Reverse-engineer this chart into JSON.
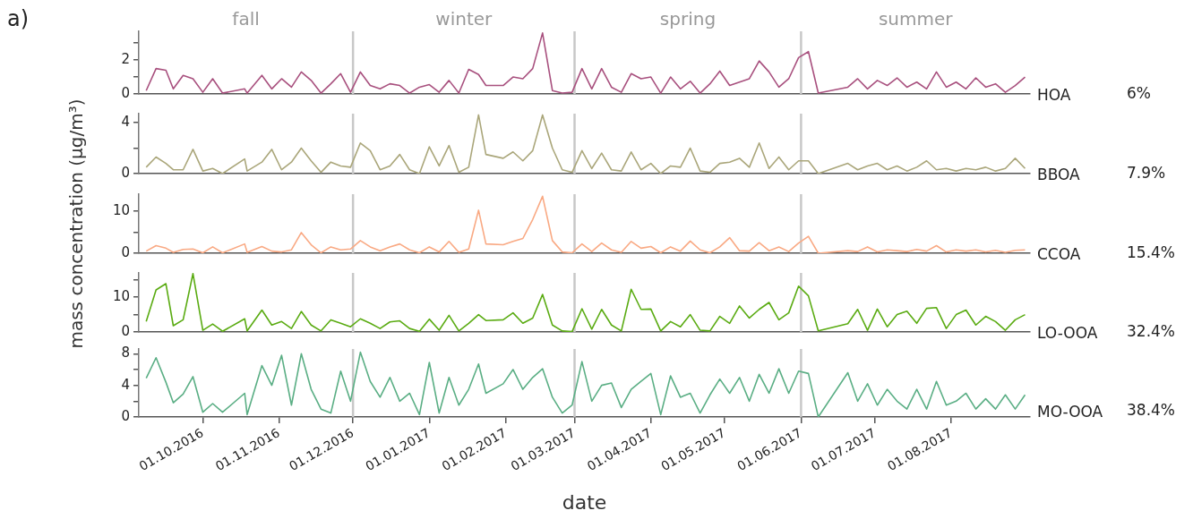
{
  "chart_data": [
    {
      "type": "line",
      "title": "a)",
      "xlim": [
        "2016-09-05",
        "2017-09-02"
      ],
      "ylim": [
        0,
        3.7
      ],
      "yticks": [
        0,
        {
          "value": 1,
          "label": null
        },
        2,
        {
          "value": 3,
          "label": null
        }
      ],
      "tick_labels": "y",
      "ref_lines": [
        {
          "axis": "x",
          "value": "2016-12-01",
          "color": "#c8c8c8"
        },
        {
          "axis": "x",
          "value": "2017-03-01",
          "color": "#c8c8c8"
        },
        {
          "axis": "x",
          "value": "2017-06-01",
          "color": "#c8c8c8"
        }
      ],
      "annotations": [
        "6%",
        "fall",
        "winter",
        "spring",
        "summer"
      ],
      "x": [
        "2016-09-08",
        "2016-09-12",
        "2016-09-16",
        "2016-09-19",
        "2016-09-23",
        "2016-09-27",
        "2016-10-01",
        "2016-10-05",
        "2016-10-09",
        "2016-10-18",
        "2016-10-19",
        "2016-10-25",
        "2016-10-29",
        "2016-11-02",
        "2016-11-06",
        "2016-11-10",
        "2016-11-14",
        "2016-11-18",
        "2016-11-22",
        "2016-11-26",
        "2016-11-30",
        "2016-12-04",
        "2016-12-08",
        "2016-12-12",
        "2016-12-16",
        "2016-12-20",
        "2016-12-24",
        "2016-12-28",
        "2017-01-01",
        "2017-01-05",
        "2017-01-09",
        "2017-01-13",
        "2017-01-17",
        "2017-01-21",
        "2017-01-24",
        "2017-01-31",
        "2017-02-04",
        "2017-02-08",
        "2017-02-12",
        "2017-02-16",
        "2017-02-20",
        "2017-02-24",
        "2017-02-28",
        "2017-03-04",
        "2017-03-08",
        "2017-03-12",
        "2017-03-16",
        "2017-03-20",
        "2017-03-24",
        "2017-03-28",
        "2017-04-01",
        "2017-04-05",
        "2017-04-09",
        "2017-04-13",
        "2017-04-17",
        "2017-04-21",
        "2017-04-25",
        "2017-04-29",
        "2017-05-03",
        "2017-05-07",
        "2017-05-11",
        "2017-05-15",
        "2017-05-19",
        "2017-05-23",
        "2017-05-27",
        "2017-05-31",
        "2017-06-04",
        "2017-06-08",
        "2017-06-20",
        "2017-06-24",
        "2017-06-28",
        "2017-07-02",
        "2017-07-06",
        "2017-07-10",
        "2017-07-14",
        "2017-07-18",
        "2017-07-22",
        "2017-07-26",
        "2017-07-30",
        "2017-08-03",
        "2017-08-07",
        "2017-08-11",
        "2017-08-15",
        "2017-08-19",
        "2017-08-23",
        "2017-08-27",
        "2017-08-31"
      ],
      "series": [
        {
          "name": "HOA",
          "color": "#a8507e",
          "values": [
            0.2,
            1.5,
            1.4,
            0.3,
            1.1,
            0.9,
            0.1,
            0.9,
            0.05,
            0.3,
            0.05,
            1.1,
            0.3,
            0.9,
            0.4,
            1.3,
            0.8,
            0.05,
            0.6,
            1.2,
            0.1,
            1.3,
            0.5,
            0.3,
            0.6,
            0.5,
            0.05,
            0.4,
            0.55,
            0.1,
            0.8,
            0.05,
            1.45,
            1.15,
            0.5,
            0.5,
            1.0,
            0.9,
            1.5,
            3.6,
            0.2,
            0.05,
            0.1,
            1.5,
            0.3,
            1.5,
            0.4,
            0.1,
            1.2,
            0.9,
            1.0,
            0.05,
            1.0,
            0.3,
            0.75,
            0.05,
            0.6,
            1.35,
            0.5,
            0.7,
            0.9,
            1.95,
            1.3,
            0.4,
            0.9,
            2.15,
            2.5,
            0.05,
            0.4,
            0.9,
            0.3,
            0.8,
            0.5,
            0.95,
            0.4,
            0.7,
            0.3,
            1.3,
            0.4,
            0.7,
            0.3,
            0.95,
            0.4,
            0.6,
            0.1,
            0.5,
            1.0
          ]
        }
      ]
    },
    {
      "type": "line",
      "xlim": [
        "2016-09-05",
        "2017-09-02"
      ],
      "ylim": [
        0,
        4.7
      ],
      "yticks": [
        0,
        {
          "value": 2,
          "label": null
        },
        4
      ],
      "tick_labels": "y",
      "ref_lines": [
        {
          "axis": "x",
          "value": "2016-12-01",
          "color": "#c8c8c8"
        },
        {
          "axis": "x",
          "value": "2017-03-01",
          "color": "#c8c8c8"
        },
        {
          "axis": "x",
          "value": "2017-06-01",
          "color": "#c8c8c8"
        }
      ],
      "annotations": [
        "7.9%"
      ],
      "x": [
        "2016-09-08",
        "2016-09-12",
        "2016-09-16",
        "2016-09-19",
        "2016-09-23",
        "2016-09-27",
        "2016-10-01",
        "2016-10-05",
        "2016-10-09",
        "2016-10-18",
        "2016-10-19",
        "2016-10-25",
        "2016-10-29",
        "2016-11-02",
        "2016-11-06",
        "2016-11-10",
        "2016-11-14",
        "2016-11-18",
        "2016-11-22",
        "2016-11-26",
        "2016-11-30",
        "2016-12-04",
        "2016-12-08",
        "2016-12-12",
        "2016-12-16",
        "2016-12-20",
        "2016-12-24",
        "2016-12-28",
        "2017-01-01",
        "2017-01-05",
        "2017-01-09",
        "2017-01-13",
        "2017-01-17",
        "2017-01-21",
        "2017-01-24",
        "2017-01-31",
        "2017-02-04",
        "2017-02-08",
        "2017-02-12",
        "2017-02-16",
        "2017-02-20",
        "2017-02-24",
        "2017-02-28",
        "2017-03-04",
        "2017-03-08",
        "2017-03-12",
        "2017-03-16",
        "2017-03-20",
        "2017-03-24",
        "2017-03-28",
        "2017-04-01",
        "2017-04-05",
        "2017-04-09",
        "2017-04-13",
        "2017-04-17",
        "2017-04-21",
        "2017-04-25",
        "2017-04-29",
        "2017-05-03",
        "2017-05-07",
        "2017-05-11",
        "2017-05-15",
        "2017-05-19",
        "2017-05-23",
        "2017-05-27",
        "2017-05-31",
        "2017-06-04",
        "2017-06-08",
        "2017-06-20",
        "2017-06-24",
        "2017-06-28",
        "2017-07-02",
        "2017-07-06",
        "2017-07-10",
        "2017-07-14",
        "2017-07-18",
        "2017-07-22",
        "2017-07-26",
        "2017-07-30",
        "2017-08-03",
        "2017-08-07",
        "2017-08-11",
        "2017-08-15",
        "2017-08-19",
        "2017-08-23",
        "2017-08-27",
        "2017-08-31"
      ],
      "series": [
        {
          "name": "BBOA",
          "color": "#aaa67a",
          "values": [
            0.5,
            1.3,
            0.8,
            0.3,
            0.3,
            1.9,
            0.2,
            0.4,
            0.0,
            1.15,
            0.2,
            0.9,
            1.9,
            0.3,
            0.9,
            2.0,
            1.0,
            0.1,
            0.9,
            0.6,
            0.5,
            2.4,
            1.8,
            0.3,
            0.6,
            1.5,
            0.3,
            0.0,
            2.1,
            0.6,
            2.2,
            0.1,
            0.5,
            4.6,
            1.5,
            1.2,
            1.7,
            1.0,
            1.8,
            4.6,
            2.0,
            0.3,
            0.1,
            1.8,
            0.4,
            1.6,
            0.3,
            0.2,
            1.7,
            0.3,
            0.8,
            0.0,
            0.6,
            0.5,
            2.0,
            0.2,
            0.1,
            0.8,
            0.9,
            1.2,
            0.5,
            2.4,
            0.4,
            1.3,
            0.3,
            1.0,
            1.0,
            0.0,
            0.8,
            0.3,
            0.6,
            0.8,
            0.3,
            0.6,
            0.2,
            0.5,
            1.0,
            0.3,
            0.4,
            0.2,
            0.4,
            0.3,
            0.5,
            0.2,
            0.4,
            1.2,
            0.4
          ]
        }
      ]
    },
    {
      "type": "line",
      "ylabel": "mass concentration (µg/m³)",
      "xlim": [
        "2016-09-05",
        "2017-09-02"
      ],
      "ylim": [
        0,
        14
      ],
      "yticks": [
        0,
        {
          "value": 5,
          "label": null
        },
        10
      ],
      "tick_labels": "y",
      "ref_lines": [
        {
          "axis": "x",
          "value": "2016-12-01",
          "color": "#c8c8c8"
        },
        {
          "axis": "x",
          "value": "2017-03-01",
          "color": "#c8c8c8"
        },
        {
          "axis": "x",
          "value": "2017-06-01",
          "color": "#c8c8c8"
        }
      ],
      "annotations": [
        "15.4%"
      ],
      "x": [
        "2016-09-08",
        "2016-09-12",
        "2016-09-16",
        "2016-09-19",
        "2016-09-23",
        "2016-09-27",
        "2016-10-01",
        "2016-10-05",
        "2016-10-09",
        "2016-10-18",
        "2016-10-19",
        "2016-10-25",
        "2016-10-29",
        "2016-11-02",
        "2016-11-06",
        "2016-11-10",
        "2016-11-14",
        "2016-11-18",
        "2016-11-22",
        "2016-11-26",
        "2016-11-30",
        "2016-12-04",
        "2016-12-08",
        "2016-12-12",
        "2016-12-16",
        "2016-12-20",
        "2016-12-24",
        "2016-12-28",
        "2017-01-01",
        "2017-01-05",
        "2017-01-09",
        "2017-01-13",
        "2017-01-17",
        "2017-01-21",
        "2017-01-24",
        "2017-01-31",
        "2017-02-04",
        "2017-02-08",
        "2017-02-12",
        "2017-02-16",
        "2017-02-20",
        "2017-02-24",
        "2017-02-28",
        "2017-03-04",
        "2017-03-08",
        "2017-03-12",
        "2017-03-16",
        "2017-03-20",
        "2017-03-24",
        "2017-03-28",
        "2017-04-01",
        "2017-04-05",
        "2017-04-09",
        "2017-04-13",
        "2017-04-17",
        "2017-04-21",
        "2017-04-25",
        "2017-04-29",
        "2017-05-03",
        "2017-05-07",
        "2017-05-11",
        "2017-05-15",
        "2017-05-19",
        "2017-05-23",
        "2017-05-27",
        "2017-05-31",
        "2017-06-04",
        "2017-06-08",
        "2017-06-20",
        "2017-06-24",
        "2017-06-28",
        "2017-07-02",
        "2017-07-06",
        "2017-07-10",
        "2017-07-14",
        "2017-07-18",
        "2017-07-22",
        "2017-07-26",
        "2017-07-30",
        "2017-08-03",
        "2017-08-07",
        "2017-08-11",
        "2017-08-15",
        "2017-08-19",
        "2017-08-23",
        "2017-08-27",
        "2017-08-31"
      ],
      "series": [
        {
          "name": "CCOA",
          "color": "#f9a983",
          "values": [
            0.5,
            1.8,
            1.2,
            0.2,
            0.9,
            1.0,
            0.1,
            1.5,
            0.1,
            2.2,
            0.2,
            1.6,
            0.5,
            0.3,
            0.8,
            4.9,
            2.0,
            0.1,
            1.5,
            0.8,
            1.0,
            3.0,
            1.5,
            0.6,
            1.5,
            2.2,
            0.8,
            0.1,
            1.5,
            0.3,
            2.8,
            0.2,
            1.0,
            10.2,
            2.2,
            2.0,
            2.8,
            3.5,
            8.0,
            13.5,
            3.0,
            0.3,
            0.1,
            2.2,
            0.4,
            2.4,
            0.8,
            0.2,
            2.8,
            1.2,
            1.6,
            0.1,
            1.5,
            0.5,
            2.9,
            0.8,
            0.1,
            1.5,
            3.7,
            0.6,
            0.5,
            2.5,
            0.6,
            1.5,
            0.4,
            2.4,
            4.0,
            0.0,
            0.6,
            0.4,
            1.5,
            0.3,
            0.8,
            0.6,
            0.4,
            0.9,
            0.5,
            1.8,
            0.3,
            0.8,
            0.5,
            0.8,
            0.3,
            0.7,
            0.2,
            0.7,
            0.8
          ]
        }
      ]
    },
    {
      "type": "line",
      "xlim": [
        "2016-09-05",
        "2017-09-02"
      ],
      "ylim": [
        0,
        17
      ],
      "yticks": [
        0,
        {
          "value": 5,
          "label": null
        },
        10,
        {
          "value": 15,
          "label": null
        }
      ],
      "tick_labels": "y",
      "ref_lines": [
        {
          "axis": "x",
          "value": "2016-12-01",
          "color": "#c8c8c8"
        },
        {
          "axis": "x",
          "value": "2017-03-01",
          "color": "#c8c8c8"
        },
        {
          "axis": "x",
          "value": "2017-06-01",
          "color": "#c8c8c8"
        }
      ],
      "annotations": [
        "32.4%"
      ],
      "x": [
        "2016-09-08",
        "2016-09-12",
        "2016-09-16",
        "2016-09-19",
        "2016-09-23",
        "2016-09-27",
        "2016-10-01",
        "2016-10-05",
        "2016-10-09",
        "2016-10-18",
        "2016-10-19",
        "2016-10-25",
        "2016-10-29",
        "2016-11-02",
        "2016-11-06",
        "2016-11-10",
        "2016-11-14",
        "2016-11-18",
        "2016-11-22",
        "2016-11-26",
        "2016-11-30",
        "2016-12-04",
        "2016-12-08",
        "2016-12-12",
        "2016-12-16",
        "2016-12-20",
        "2016-12-24",
        "2016-12-28",
        "2017-01-01",
        "2017-01-05",
        "2017-01-09",
        "2017-01-13",
        "2017-01-17",
        "2017-01-21",
        "2017-01-24",
        "2017-01-31",
        "2017-02-04",
        "2017-02-08",
        "2017-02-12",
        "2017-02-16",
        "2017-02-20",
        "2017-02-24",
        "2017-02-28",
        "2017-03-04",
        "2017-03-08",
        "2017-03-12",
        "2017-03-16",
        "2017-03-20",
        "2017-03-24",
        "2017-03-28",
        "2017-04-01",
        "2017-04-05",
        "2017-04-09",
        "2017-04-13",
        "2017-04-17",
        "2017-04-21",
        "2017-04-25",
        "2017-04-29",
        "2017-05-03",
        "2017-05-07",
        "2017-05-11",
        "2017-05-15",
        "2017-05-19",
        "2017-05-23",
        "2017-05-27",
        "2017-05-31",
        "2017-06-04",
        "2017-06-08",
        "2017-06-20",
        "2017-06-24",
        "2017-06-28",
        "2017-07-02",
        "2017-07-06",
        "2017-07-10",
        "2017-07-14",
        "2017-07-18",
        "2017-07-22",
        "2017-07-26",
        "2017-07-30",
        "2017-08-03",
        "2017-08-07",
        "2017-08-11",
        "2017-08-15",
        "2017-08-19",
        "2017-08-23",
        "2017-08-27",
        "2017-08-31"
      ],
      "series": [
        {
          "name": "LO-OOA",
          "color": "#5aab12",
          "values": [
            3.0,
            12.1,
            13.9,
            1.8,
            3.5,
            16.8,
            0.5,
            2.3,
            0.2,
            3.8,
            0.3,
            6.3,
            2.0,
            3.0,
            1.0,
            5.9,
            2.0,
            0.3,
            3.5,
            2.5,
            1.5,
            3.8,
            2.5,
            1.0,
            2.9,
            3.2,
            1.0,
            0.2,
            3.7,
            0.5,
            4.8,
            0.3,
            2.5,
            5.0,
            3.3,
            3.5,
            5.5,
            2.5,
            4.0,
            10.8,
            2.0,
            0.3,
            0.1,
            6.7,
            0.8,
            6.5,
            2.0,
            0.3,
            12.3,
            6.5,
            6.6,
            0.3,
            3.0,
            1.5,
            5.0,
            0.5,
            0.3,
            4.5,
            2.5,
            7.5,
            4.0,
            6.5,
            8.5,
            3.5,
            5.5,
            13.2,
            10.4,
            0.3,
            2.4,
            6.5,
            0.5,
            6.6,
            1.5,
            5.0,
            6.0,
            2.5,
            6.8,
            7.0,
            1.0,
            5.0,
            6.3,
            2.0,
            4.5,
            3.0,
            0.5,
            3.5,
            5.0
          ]
        }
      ]
    },
    {
      "type": "line",
      "xlabel": "date",
      "xlim": [
        "2016-09-05",
        "2017-09-02"
      ],
      "ylim": [
        0,
        8.6
      ],
      "yticks": [
        0,
        {
          "value": 2,
          "label": null
        },
        4,
        {
          "value": 6,
          "label": null
        },
        8
      ],
      "xticks": [
        {
          "value": "2016-10-01",
          "label": "01.10.2016"
        },
        {
          "value": "2016-11-01",
          "label": "01.11.2016"
        },
        {
          "value": "2016-12-01",
          "label": "01.12.2016"
        },
        {
          "value": "2017-01-01",
          "label": "01.01.2017"
        },
        {
          "value": "2017-02-01",
          "label": "01.02.2017"
        },
        {
          "value": "2017-03-01",
          "label": "01.03.2017"
        },
        {
          "value": "2017-04-01",
          "label": "01.04.2017"
        },
        {
          "value": "2017-05-01",
          "label": "01.05.2017"
        },
        {
          "value": "2017-06-01",
          "label": "01.06.2017"
        },
        {
          "value": "2017-07-01",
          "label": "01.07.2017"
        },
        {
          "value": "2017-08-01",
          "label": "01.08.2017"
        }
      ],
      "ref_lines": [
        {
          "axis": "x",
          "value": "2016-12-01",
          "color": "#c8c8c8"
        },
        {
          "axis": "x",
          "value": "2017-03-01",
          "color": "#c8c8c8"
        },
        {
          "axis": "x",
          "value": "2017-06-01",
          "color": "#c8c8c8"
        }
      ],
      "annotations": [
        "38.4%"
      ],
      "x": [
        "2016-09-08",
        "2016-09-12",
        "2016-09-16",
        "2016-09-19",
        "2016-09-23",
        "2016-09-27",
        "2016-10-01",
        "2016-10-05",
        "2016-10-09",
        "2016-10-18",
        "2016-10-19",
        "2016-10-25",
        "2016-10-29",
        "2016-11-02",
        "2016-11-06",
        "2016-11-10",
        "2016-11-14",
        "2016-11-18",
        "2016-11-22",
        "2016-11-26",
        "2016-11-30",
        "2016-12-04",
        "2016-12-08",
        "2016-12-12",
        "2016-12-16",
        "2016-12-20",
        "2016-12-24",
        "2016-12-28",
        "2017-01-01",
        "2017-01-05",
        "2017-01-09",
        "2017-01-13",
        "2017-01-17",
        "2017-01-21",
        "2017-01-24",
        "2017-01-31",
        "2017-02-04",
        "2017-02-08",
        "2017-02-12",
        "2017-02-16",
        "2017-02-20",
        "2017-02-24",
        "2017-02-28",
        "2017-03-04",
        "2017-03-08",
        "2017-03-12",
        "2017-03-16",
        "2017-03-20",
        "2017-03-24",
        "2017-03-28",
        "2017-04-01",
        "2017-04-05",
        "2017-04-09",
        "2017-04-13",
        "2017-04-17",
        "2017-04-21",
        "2017-04-25",
        "2017-04-29",
        "2017-05-03",
        "2017-05-07",
        "2017-05-11",
        "2017-05-15",
        "2017-05-19",
        "2017-05-23",
        "2017-05-27",
        "2017-05-31",
        "2017-06-04",
        "2017-06-08",
        "2017-06-20",
        "2017-06-24",
        "2017-06-28",
        "2017-07-02",
        "2017-07-06",
        "2017-07-10",
        "2017-07-14",
        "2017-07-18",
        "2017-07-22",
        "2017-07-26",
        "2017-07-30",
        "2017-08-03",
        "2017-08-07",
        "2017-08-11",
        "2017-08-15",
        "2017-08-19",
        "2017-08-23",
        "2017-08-27",
        "2017-08-31"
      ],
      "series": [
        {
          "name": "MO-OOA",
          "color": "#5aae84",
          "values": [
            4.9,
            7.5,
            4.4,
            1.8,
            2.9,
            5.1,
            0.6,
            1.7,
            0.6,
            3.0,
            0.3,
            6.5,
            4.0,
            7.8,
            1.5,
            8.0,
            3.5,
            1.0,
            0.5,
            5.8,
            2.0,
            8.2,
            4.5,
            2.5,
            5.0,
            2.0,
            3.0,
            0.3,
            6.9,
            0.5,
            5.0,
            1.5,
            3.5,
            6.7,
            3.0,
            4.2,
            6.0,
            3.5,
            5.0,
            6.1,
            2.5,
            0.5,
            1.5,
            7.0,
            2.0,
            4.0,
            4.3,
            1.2,
            3.5,
            4.5,
            5.5,
            0.3,
            5.2,
            2.5,
            3.0,
            0.5,
            2.8,
            4.8,
            3.0,
            5.0,
            2.0,
            5.4,
            3.0,
            6.1,
            3.0,
            5.8,
            5.5,
            0.0,
            5.6,
            2.0,
            4.2,
            1.5,
            3.5,
            2.0,
            1.0,
            3.5,
            1.0,
            4.5,
            1.5,
            2.0,
            3.0,
            1.0,
            2.3,
            1.0,
            2.8,
            1.0,
            2.8
          ]
        }
      ]
    }
  ]
}
